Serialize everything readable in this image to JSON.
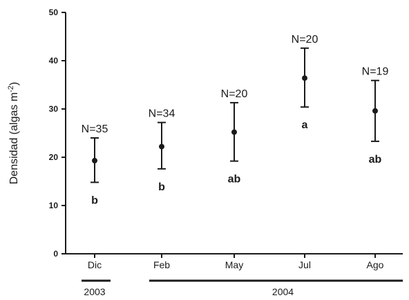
{
  "chart_data": {
    "type": "scatter",
    "ylabel": "Densidad (algas m",
    "ylabel_sup": "-2",
    "ylabel_close": ")",
    "ylim": [
      0,
      50
    ],
    "yticks": [
      0,
      10,
      20,
      30,
      40,
      50
    ],
    "categories": [
      "Dic",
      "Feb",
      "May",
      "Jul",
      "Ago"
    ],
    "points": [
      {
        "category": "Dic",
        "mean": 19.3,
        "low": 14.8,
        "high": 24.0,
        "n_label": "N=35",
        "group": "b"
      },
      {
        "category": "Feb",
        "mean": 22.2,
        "low": 17.6,
        "high": 27.2,
        "n_label": "N=34",
        "group": "b"
      },
      {
        "category": "May",
        "mean": 25.2,
        "low": 19.2,
        "high": 31.3,
        "n_label": "N=20",
        "group": "ab"
      },
      {
        "category": "Jul",
        "mean": 36.4,
        "low": 30.4,
        "high": 42.6,
        "n_label": "N=20",
        "group": "a"
      },
      {
        "category": "Ago",
        "mean": 29.6,
        "low": 23.3,
        "high": 35.9,
        "n_label": "N=19",
        "group": "ab"
      }
    ],
    "years": [
      {
        "label": "2003",
        "categories": [
          "Dic"
        ]
      },
      {
        "label": "2004",
        "categories": [
          "Feb",
          "May",
          "Jul",
          "Ago"
        ]
      }
    ],
    "grid": false,
    "legend": "none"
  }
}
